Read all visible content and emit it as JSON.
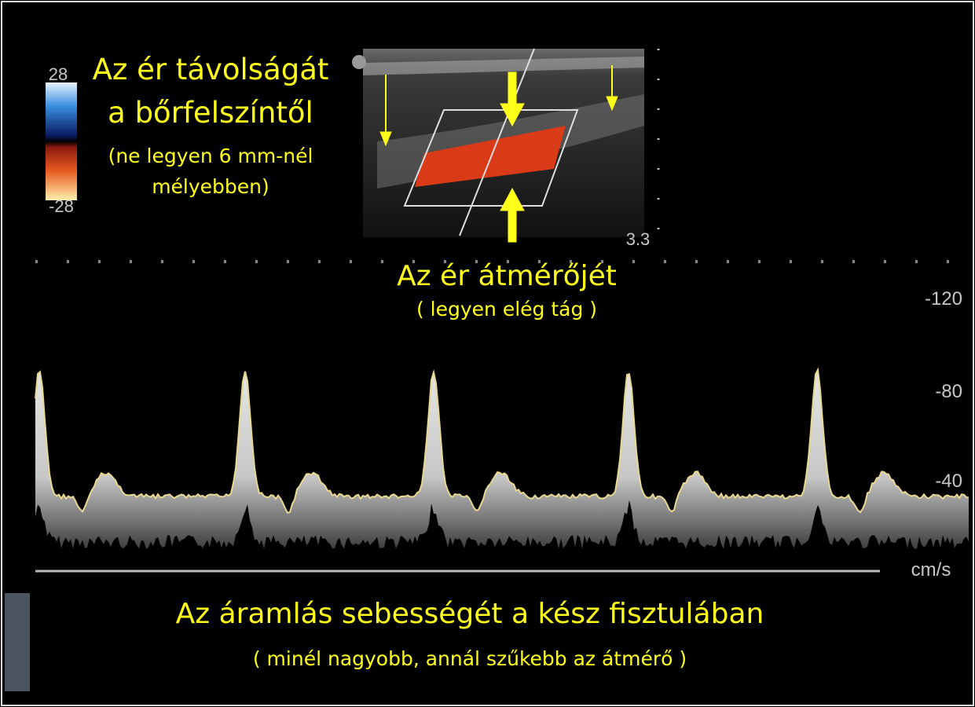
{
  "color_scale": {
    "max": "28",
    "min": "-28"
  },
  "depth_note": {
    "title": [
      "Az ér távolságát",
      "a bőrfelszíntől"
    ],
    "detail": [
      "(ne legyen 6 mm-nél",
      "mélyebben)"
    ]
  },
  "depth_label": "3.3",
  "diameter_note": {
    "title": "Az ér átmérőjét",
    "detail": "( legyen elég tág )"
  },
  "velocity_scale": {
    "labels": [
      "-120",
      "-80",
      "-40"
    ],
    "unit": "cm/s"
  },
  "velocity_note": {
    "title": "Az áramlás sebességét a kész fisztulában",
    "detail": "( minél nagyobb, annál szűkebb az átmérő )"
  }
}
